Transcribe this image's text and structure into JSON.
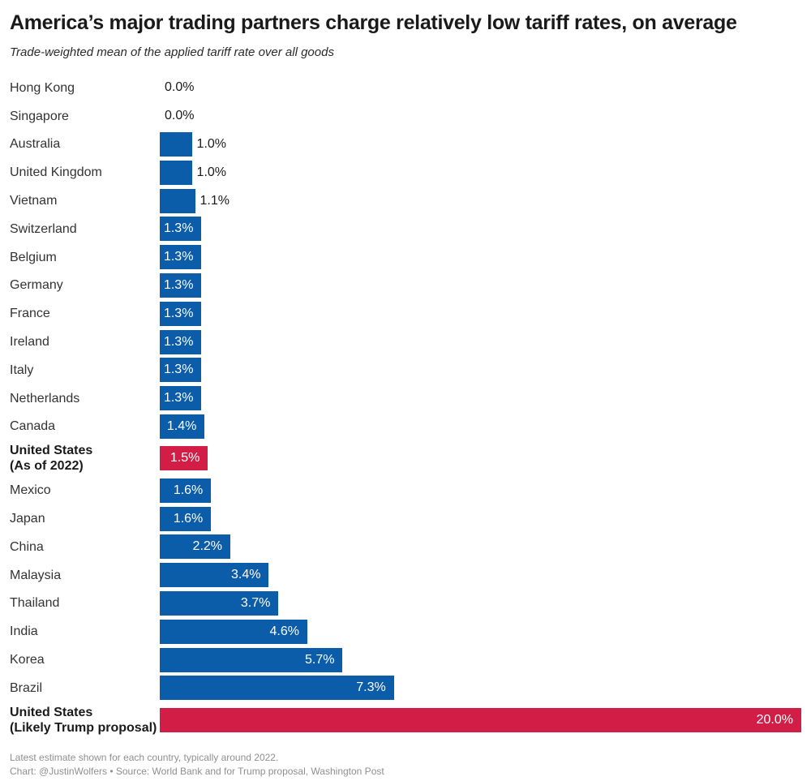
{
  "header": {
    "title": "America’s major trading partners charge relatively low tariff rates, on average",
    "subtitle": "Trade-weighted mean of the applied tariff rate over all goods"
  },
  "footer": {
    "note": "Latest estimate shown for each country, typically around 2022.",
    "byline": "Chart: @JustinWolfers • Source: World Bank and for Trump proposal, Washington Post"
  },
  "colors": {
    "bar_default": "#0b5ca9",
    "bar_highlight": "#d21e47",
    "value_inside_text": "#ffffff",
    "value_outside_text": "#1a1a1a"
  },
  "chart_data": {
    "type": "bar",
    "orientation": "horizontal",
    "xlim": [
      0,
      20
    ],
    "value_suffix": "%",
    "grid": false,
    "legend": null,
    "title": "America’s major trading partners charge relatively low tariff rates, on average",
    "subtitle": "Trade-weighted mean of the applied tariff rate over all goods",
    "items": [
      {
        "label": "Hong Kong",
        "value": 0.0,
        "display": "0.0%",
        "highlight": false
      },
      {
        "label": "Singapore",
        "value": 0.0,
        "display": "0.0%",
        "highlight": false
      },
      {
        "label": "Australia",
        "value": 1.0,
        "display": "1.0%",
        "highlight": false
      },
      {
        "label": "United Kingdom",
        "value": 1.0,
        "display": "1.0%",
        "highlight": false
      },
      {
        "label": "Vietnam",
        "value": 1.1,
        "display": "1.1%",
        "highlight": false
      },
      {
        "label": "Switzerland",
        "value": 1.3,
        "display": "1.3%",
        "highlight": false
      },
      {
        "label": "Belgium",
        "value": 1.3,
        "display": "1.3%",
        "highlight": false
      },
      {
        "label": "Germany",
        "value": 1.3,
        "display": "1.3%",
        "highlight": false
      },
      {
        "label": "France",
        "value": 1.3,
        "display": "1.3%",
        "highlight": false
      },
      {
        "label": "Ireland",
        "value": 1.3,
        "display": "1.3%",
        "highlight": false
      },
      {
        "label": "Italy",
        "value": 1.3,
        "display": "1.3%",
        "highlight": false
      },
      {
        "label": "Netherlands",
        "value": 1.3,
        "display": "1.3%",
        "highlight": false
      },
      {
        "label": "Canada",
        "value": 1.4,
        "display": "1.4%",
        "highlight": false
      },
      {
        "label": "United States",
        "sublabel": "(As of 2022)",
        "value": 1.5,
        "display": "1.5%",
        "highlight": true
      },
      {
        "label": "Mexico",
        "value": 1.6,
        "display": "1.6%",
        "highlight": false
      },
      {
        "label": "Japan",
        "value": 1.6,
        "display": "1.6%",
        "highlight": false
      },
      {
        "label": "China",
        "value": 2.2,
        "display": "2.2%",
        "highlight": false
      },
      {
        "label": "Malaysia",
        "value": 3.4,
        "display": "3.4%",
        "highlight": false
      },
      {
        "label": "Thailand",
        "value": 3.7,
        "display": "3.7%",
        "highlight": false
      },
      {
        "label": "India",
        "value": 4.6,
        "display": "4.6%",
        "highlight": false
      },
      {
        "label": "Korea",
        "value": 5.7,
        "display": "5.7%",
        "highlight": false
      },
      {
        "label": "Brazil",
        "value": 7.3,
        "display": "7.3%",
        "highlight": false
      },
      {
        "label": "United States",
        "sublabel": "(Likely Trump proposal)",
        "value": 20.0,
        "display": "20.0%",
        "highlight": true
      }
    ]
  }
}
